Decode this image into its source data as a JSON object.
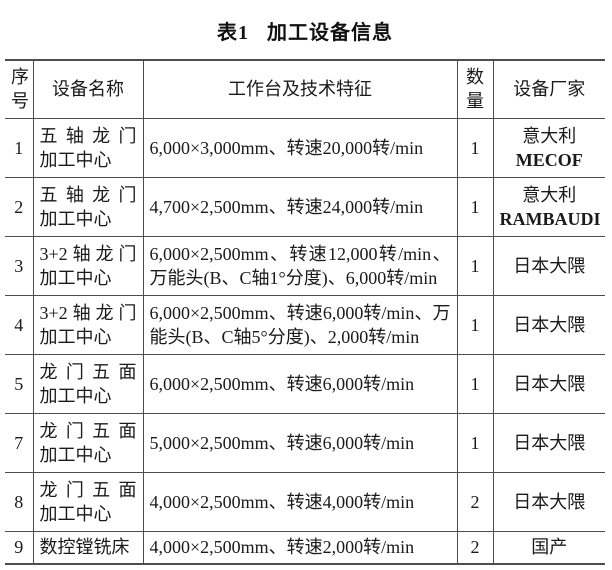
{
  "title": {
    "label": "表1",
    "text": "加工设备信息"
  },
  "table": {
    "headers": {
      "index": "序\n号",
      "name": "设备名称",
      "features": "工作台及技术特征",
      "qty": "数\n量",
      "vendor": "设备厂家"
    },
    "rows": [
      {
        "index": "1",
        "name": "五轴龙门\n加工中心",
        "features": "6,000×3,000mm、转速20,000转/min",
        "qty": "1",
        "vendor": "意大利\nMECOF"
      },
      {
        "index": "2",
        "name": "五轴龙门\n加工中心",
        "features": "4,700×2,500mm、转速24,000转/min",
        "qty": "1",
        "vendor": "意大利\nRAMBAUDI"
      },
      {
        "index": "3",
        "name": "3+2轴龙门\n加工中心",
        "features": "6,000×2,500mm、转速12,000转/min、\n万能头(B、C轴1°分度)、6,000转/min",
        "qty": "1",
        "vendor": "日本大隈"
      },
      {
        "index": "4",
        "name": "3+2轴龙门\n加工中心",
        "features": "6,000×2,500mm、转速6,000转/min、万\n能头(B、C轴5°分度)、2,000转/min",
        "qty": "1",
        "vendor": "日本大隈"
      },
      {
        "index": "5",
        "name": "龙门五面\n加工中心",
        "features": "6,000×2,500mm、转速6,000转/min",
        "qty": "1",
        "vendor": "日本大隈"
      },
      {
        "index": "7",
        "name": "龙门五面\n加工中心",
        "features": "5,000×2,500mm、转速6,000转/min",
        "qty": "1",
        "vendor": "日本大隈"
      },
      {
        "index": "8",
        "name": "龙门五面\n加工中心",
        "features": "4,000×2,500mm、转速4,000转/min",
        "qty": "2",
        "vendor": "日本大隈"
      },
      {
        "index": "9",
        "name": "数控镗铣床",
        "features": "4,000×2,500mm、转速2,000转/min",
        "qty": "2",
        "vendor": "国产"
      }
    ]
  },
  "colors": {
    "text": "#1a1a1a",
    "border": "#4d4d4d",
    "background": "#ffffff"
  }
}
